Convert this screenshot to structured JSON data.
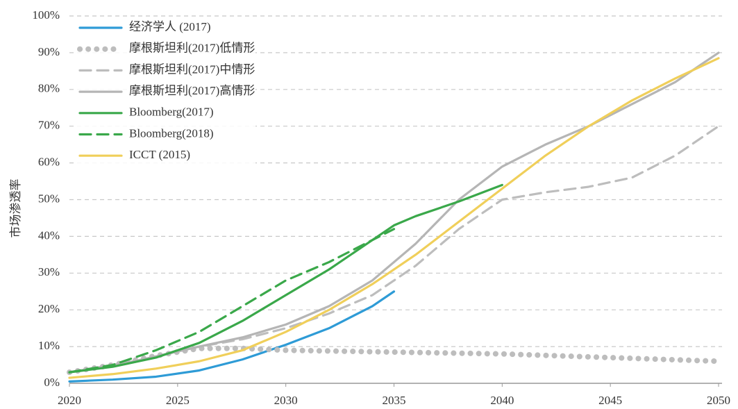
{
  "chart_data": {
    "type": "line",
    "y_label": "市场渗透率",
    "xlim": [
      2020,
      2050
    ],
    "xticks": [
      2020,
      2025,
      2030,
      2035,
      2040,
      2045,
      2050
    ],
    "ylim": [
      0,
      100
    ],
    "yticks": [
      {
        "value": 0,
        "label": "0%"
      },
      {
        "value": 10,
        "label": "10%"
      },
      {
        "value": 20,
        "label": "20%"
      },
      {
        "value": 30,
        "label": "30%"
      },
      {
        "value": 40,
        "label": "40%"
      },
      {
        "value": 50,
        "label": "50%"
      },
      {
        "value": 60,
        "label": "60%"
      },
      {
        "value": 70,
        "label": "70%"
      },
      {
        "value": 80,
        "label": "80%"
      },
      {
        "value": 90,
        "label": "90%"
      },
      {
        "value": 100,
        "label": "100%"
      }
    ],
    "grid": true,
    "legend": "upper left",
    "series": [
      {
        "name": "经济学人 (2017)",
        "color": "#2e9bd6",
        "style": "solid",
        "x": [
          2020,
          2022,
          2024,
          2026,
          2028,
          2030,
          2032,
          2034,
          2035
        ],
        "values": [
          0.5,
          1,
          1.8,
          3.5,
          6.5,
          10.5,
          15,
          21,
          25
        ]
      },
      {
        "name": "摩根斯坦利(2017)低情形",
        "color": "#bdbdbd",
        "style": "dotted",
        "x": [
          2020,
          2022,
          2024,
          2026,
          2028,
          2030,
          2035,
          2040,
          2045,
          2050
        ],
        "values": [
          3,
          5,
          7.5,
          9.5,
          9.5,
          9,
          8.5,
          8,
          7,
          6
        ]
      },
      {
        "name": "摩根斯坦利(2017)中情形",
        "color": "#bdbdbd",
        "style": "dashed",
        "x": [
          2020,
          2023,
          2026,
          2028,
          2030,
          2032,
          2034,
          2036,
          2038,
          2040,
          2042,
          2044,
          2046,
          2048,
          2050
        ],
        "values": [
          3,
          6,
          10,
          12,
          15,
          19,
          24,
          32,
          42,
          50,
          52,
          53.5,
          56,
          62,
          70
        ]
      },
      {
        "name": "摩根斯坦利(2017)高情形",
        "color": "#b5b5b5",
        "style": "solid",
        "x": [
          2020,
          2023,
          2026,
          2028,
          2030,
          2032,
          2034,
          2036,
          2038,
          2040,
          2042,
          2044,
          2046,
          2048,
          2050
        ],
        "values": [
          3,
          6,
          10,
          12.5,
          16,
          21,
          28,
          38,
          50,
          59,
          65,
          70,
          76,
          82,
          90
        ]
      },
      {
        "name": "Bloomberg(2017)",
        "color": "#3aa84a",
        "style": "solid",
        "x": [
          2020,
          2022,
          2024,
          2026,
          2028,
          2030,
          2032,
          2034,
          2035,
          2036,
          2038,
          2040
        ],
        "values": [
          3,
          4.5,
          7,
          11,
          17,
          24,
          31,
          39,
          43,
          45.5,
          49.5,
          54
        ]
      },
      {
        "name": "Bloomberg(2018)",
        "color": "#3aa84a",
        "style": "dashed",
        "x": [
          2020,
          2022,
          2024,
          2026,
          2028,
          2030,
          2032,
          2034,
          2035
        ],
        "values": [
          3,
          5,
          9,
          14,
          21,
          28,
          33,
          39,
          42
        ]
      },
      {
        "name": "ICCT (2015)",
        "color": "#f0cf5a",
        "style": "solid",
        "x": [
          2020,
          2022,
          2024,
          2026,
          2028,
          2030,
          2032,
          2034,
          2036,
          2038,
          2040,
          2042,
          2044,
          2046,
          2048,
          2050
        ],
        "values": [
          1.5,
          2.5,
          4,
          6,
          9,
          14,
          20,
          27,
          35,
          44,
          53,
          62,
          70,
          77,
          83,
          88.5
        ]
      }
    ]
  }
}
